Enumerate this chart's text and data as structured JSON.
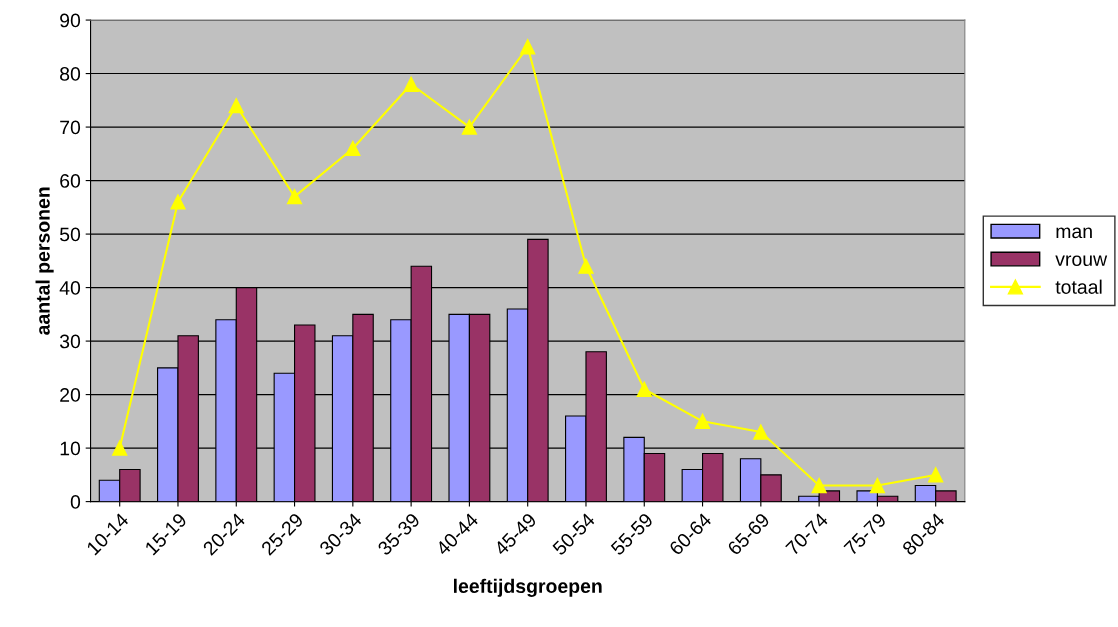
{
  "chart_data": {
    "type": "bar",
    "xlabel": "leeftijdsgroepen",
    "ylabel": "aantal personen",
    "categories": [
      "10-14",
      "15-19",
      "20-24",
      "25-29",
      "30-34",
      "35-39",
      "40-44",
      "45-49",
      "50-54",
      "55-59",
      "60-64",
      "65-69",
      "70-74",
      "75-79",
      "80-84"
    ],
    "series": [
      {
        "name": "man",
        "color": "#9999ff",
        "values": [
          4,
          25,
          34,
          24,
          31,
          34,
          35,
          36,
          16,
          12,
          6,
          8,
          1,
          2,
          3
        ]
      },
      {
        "name": "vrouw",
        "color": "#993366",
        "values": [
          6,
          31,
          40,
          33,
          35,
          44,
          35,
          49,
          28,
          9,
          9,
          5,
          2,
          1,
          2
        ]
      },
      {
        "name": "totaal",
        "type": "line",
        "color": "#ffff00",
        "marker": "triangle",
        "values": [
          10,
          56,
          74,
          57,
          66,
          78,
          70,
          85,
          44,
          21,
          15,
          13,
          3,
          3,
          5
        ]
      }
    ],
    "ylim": [
      0,
      90
    ],
    "yticks": [
      0,
      10,
      20,
      30,
      40,
      50,
      60,
      70,
      80,
      90
    ],
    "grid": "y",
    "legend": "right"
  }
}
